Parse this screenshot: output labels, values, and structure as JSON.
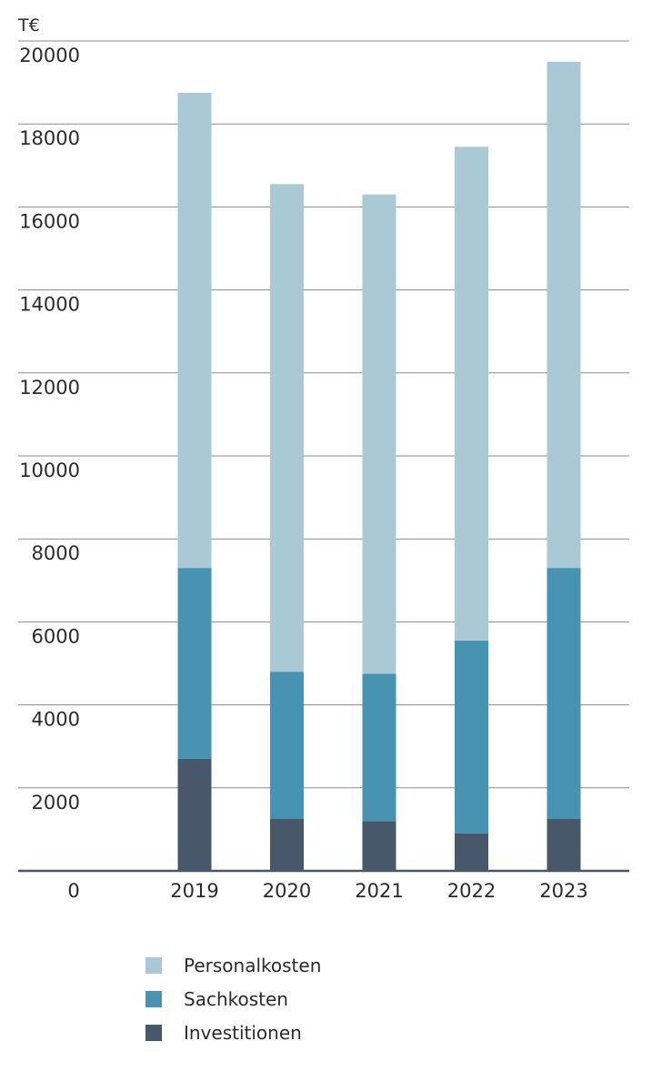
{
  "chart_data": {
    "type": "bar",
    "stacked": true,
    "unit_label": "T€",
    "ylim": [
      0,
      20000
    ],
    "yticks": [
      20000,
      18000,
      16000,
      14000,
      12000,
      10000,
      8000,
      6000,
      4000,
      2000,
      0
    ],
    "categories": [
      "2019",
      "2020",
      "2021",
      "2022",
      "2023"
    ],
    "grid": true,
    "legend_position": "bottom-left",
    "series": [
      {
        "name": "Investitionen",
        "color": "#48586b",
        "values": [
          2700,
          1250,
          1200,
          900,
          1250
        ]
      },
      {
        "name": "Sachkosten",
        "color": "#4793b2",
        "values": [
          4600,
          3550,
          3550,
          4650,
          6050
        ]
      },
      {
        "name": "Personalkosten",
        "color": "#a9c9d5",
        "values": [
          11450,
          11750,
          11550,
          11900,
          12200
        ]
      }
    ]
  },
  "legend": [
    {
      "label": "Personalkosten",
      "color": "#a9c9d5"
    },
    {
      "label": "Sachkosten",
      "color": "#4793b2"
    },
    {
      "label": "Investitionen",
      "color": "#48586b"
    }
  ]
}
